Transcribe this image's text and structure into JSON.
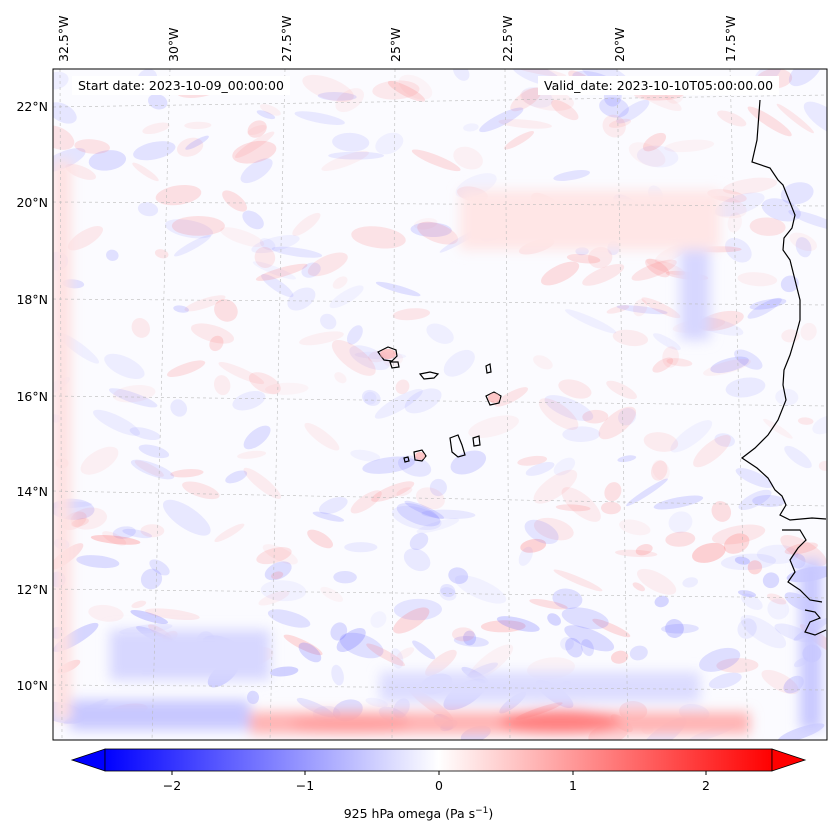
{
  "map": {
    "start_label": "Start date: 2023-10-09_00:00:00",
    "valid_label": "Valid_date: 2023-10-10T05:00:00.00",
    "lon_labels": [
      "32.5°W",
      "30°W",
      "27.5°W",
      "25°W",
      "22.5°W",
      "20°W",
      "17.5°W"
    ],
    "lat_labels": [
      "22°N",
      "20°N",
      "18°N",
      "16°N",
      "14°N",
      "12°N",
      "10°N"
    ],
    "gridlines": true,
    "coastline_color": "#000000"
  },
  "colorbar": {
    "label_main": "925 hPa omega (Pa s",
    "label_exp": "−1",
    "label_close": ")",
    "ticks": [
      "−2",
      "−1",
      "0",
      "1",
      "2"
    ],
    "tick_values": [
      -2,
      -1,
      0,
      1,
      2
    ],
    "range": [
      -2.6,
      2.6
    ],
    "low_color": "#0000ff",
    "mid_color": "#ffffff",
    "high_color": "#ff0000",
    "extend": "both"
  }
}
